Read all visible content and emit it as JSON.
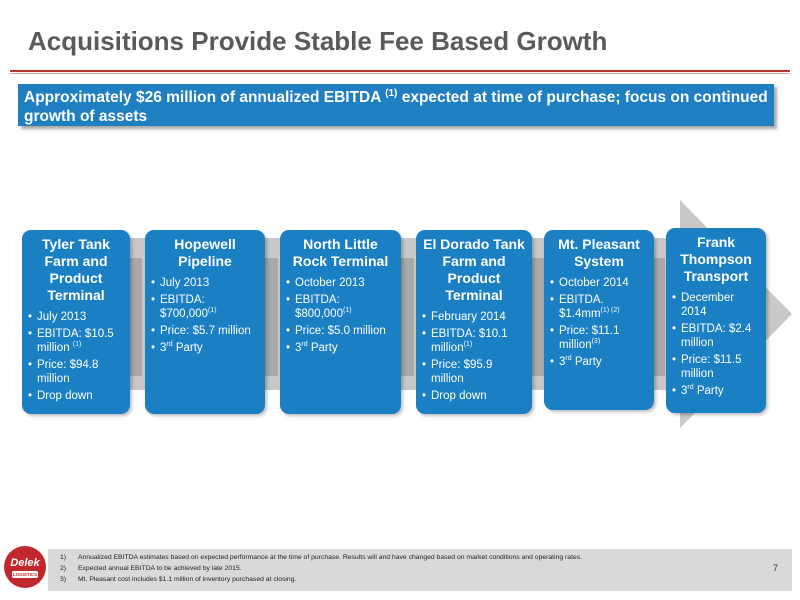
{
  "header": {
    "title": "Acquisitions Provide Stable Fee Based Growth"
  },
  "banner": {
    "text_before": "Approximately $26 million of annualized EBITDA ",
    "sup": "(1)",
    "text_after": " expected at time of purchase; focus on continued growth of assets"
  },
  "acquisitions": [
    {
      "title": "Tyler Tank Farm and Product Terminal",
      "bullets": [
        [
          "July 2013",
          ""
        ],
        [
          "EBITDA: $10.5 million ",
          "(1)"
        ],
        [
          "Price: $94.8 million",
          ""
        ],
        [
          "Drop down",
          ""
        ]
      ]
    },
    {
      "title": "Hopewell Pipeline",
      "bullets": [
        [
          "July 2013",
          ""
        ],
        [
          "EBITDA: $700,000",
          "(1)"
        ],
        [
          "Price: $5.7 million",
          ""
        ],
        [
          "3rd Party",
          ""
        ]
      ]
    },
    {
      "title": "North Little Rock Terminal",
      "bullets": [
        [
          "October 2013",
          ""
        ],
        [
          "EBITDA: $800,000",
          "(1)"
        ],
        [
          "Price: $5.0 million",
          ""
        ],
        [
          "3rd Party",
          ""
        ]
      ]
    },
    {
      "title": "El Dorado Tank Farm and Product Terminal",
      "bullets": [
        [
          "February 2014",
          ""
        ],
        [
          "EBITDA: $10.1 million",
          "(1)"
        ],
        [
          "Price: $95.9 million",
          ""
        ],
        [
          "Drop down",
          ""
        ]
      ]
    },
    {
      "title": "Mt. Pleasant System",
      "bullets": [
        [
          "October 2014",
          ""
        ],
        [
          "EBITDA. $1.4mm",
          "(1) (2)"
        ],
        [
          "Price: $11.1 million",
          "(3)"
        ],
        [
          "3rd Party",
          ""
        ]
      ]
    },
    {
      "title": "Frank Thompson Transport",
      "bullets": [
        [
          "December 2014",
          ""
        ],
        [
          "EBITDA: $2.4 million",
          ""
        ],
        [
          "Price: $11.5 million",
          ""
        ],
        [
          "3rd Party",
          ""
        ]
      ]
    }
  ],
  "footnotes": [
    {
      "num": "1)",
      "text": "Annualized EBITDA estimates based on expected performance at the time of purchase. Results will and have changed based on market conditions and operating rates."
    },
    {
      "num": "2)",
      "text": "Expected annual EBITDA to be achieved by late 2015."
    },
    {
      "num": "3)",
      "text": "Mt. Pleasant cost includes $1.1 million of inventory purchased at closing."
    }
  ],
  "page_number": "7",
  "logo": {
    "name": "Delek",
    "sub": "LOGISTICS"
  },
  "colors": {
    "accent_blue": "#1b7fc4",
    "banner_blue": "#1f7fc0",
    "rule_red": "#b83232",
    "arrow_gray": "#c8c8c8"
  }
}
